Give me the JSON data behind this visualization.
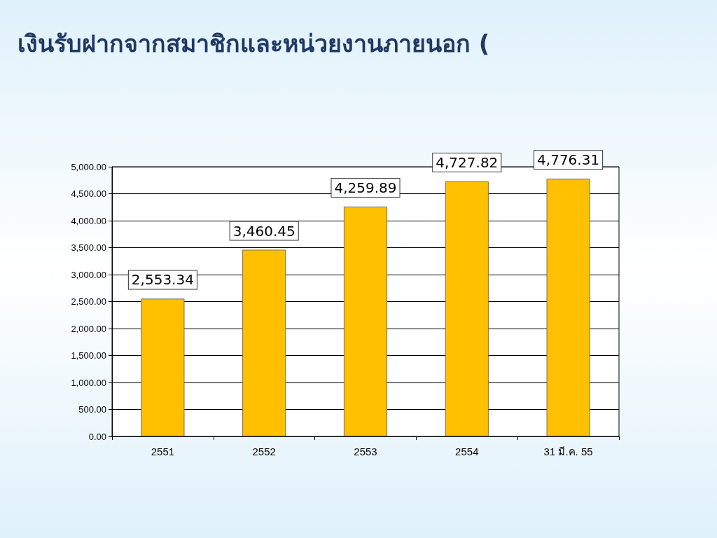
{
  "chart_data": {
    "type": "bar",
    "title": "เงินรับฝากจากสมาชิกและหน่วยงานภายนอก (",
    "categories": [
      "2551",
      "2552",
      "2553",
      "2554",
      "31 มี.ค. 55"
    ],
    "values": [
      2553.34,
      3460.45,
      4259.89,
      4727.82,
      4776.31
    ],
    "value_labels": [
      "2,553.34",
      "3,460.45",
      "4,259.89",
      "4,727.82",
      "4,776.31"
    ],
    "color": "#ffc000",
    "ylim": [
      0,
      5000
    ],
    "yticks": [
      {
        "value": 0,
        "label": "0.00"
      },
      {
        "value": 500,
        "label": "500.00"
      },
      {
        "value": 1000,
        "label": "1,000.00"
      },
      {
        "value": 1500,
        "label": "1,500.00"
      },
      {
        "value": 2000,
        "label": "2,000.00"
      },
      {
        "value": 2500,
        "label": "2,500.00"
      },
      {
        "value": 3000,
        "label": "3,000.00"
      },
      {
        "value": 3500,
        "label": "3,500.00"
      },
      {
        "value": 4000,
        "label": "4,000.00"
      },
      {
        "value": 4500,
        "label": "4,500.00"
      },
      {
        "value": 5000,
        "label": "5,000.00"
      }
    ],
    "grid": true
  }
}
